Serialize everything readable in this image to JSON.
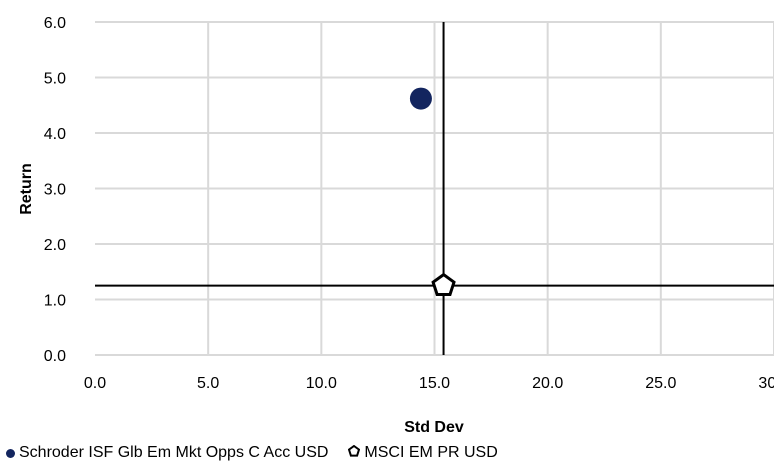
{
  "chart_data": {
    "type": "scatter",
    "xlabel": "Std Dev",
    "ylabel": "Return",
    "xlim": [
      0,
      30
    ],
    "ylim": [
      0,
      6
    ],
    "x_ticks": [
      "0.0",
      "5.0",
      "10.0",
      "15.0",
      "20.0",
      "25.0",
      "30.0"
    ],
    "y_ticks": [
      "0.0",
      "1.0",
      "2.0",
      "3.0",
      "4.0",
      "5.0",
      "6.0"
    ],
    "grid": true,
    "legend_position": "bottom-left",
    "crosshair": {
      "x": 15.4,
      "y": 1.25
    },
    "series": [
      {
        "name": "Schroder ISF Glb Em Mkt Opps C Acc USD",
        "marker": "circle",
        "color": "#13255F",
        "points": [
          {
            "x": 14.4,
            "y": 4.62
          }
        ]
      },
      {
        "name": "MSCI EM PR USD",
        "marker": "pentagon-outline",
        "color": "#000000",
        "points": [
          {
            "x": 15.4,
            "y": 1.25
          }
        ]
      }
    ]
  }
}
